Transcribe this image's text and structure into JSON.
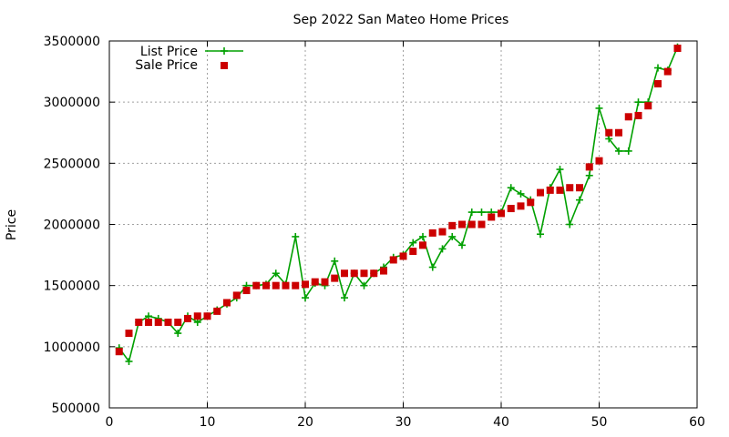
{
  "chart_data": {
    "type": "line",
    "title": "Sep 2022 San Mateo Home Prices",
    "xlabel": "",
    "ylabel": "Price",
    "xlim": [
      0,
      60
    ],
    "ylim": [
      500000,
      3500000
    ],
    "xticks": [
      0,
      10,
      20,
      30,
      40,
      50,
      60
    ],
    "yticks": [
      500000,
      1000000,
      1500000,
      2000000,
      2500000,
      3000000,
      3500000
    ],
    "grid": true,
    "legend_position": "top-left",
    "series": [
      {
        "name": "List Price",
        "style": "line+cross",
        "color": "#00a000",
        "x": [
          1,
          2,
          3,
          4,
          5,
          6,
          7,
          8,
          9,
          10,
          11,
          12,
          13,
          14,
          15,
          16,
          17,
          18,
          19,
          20,
          21,
          22,
          23,
          24,
          25,
          26,
          27,
          28,
          29,
          30,
          31,
          32,
          33,
          34,
          35,
          36,
          37,
          38,
          39,
          40,
          41,
          42,
          43,
          44,
          45,
          46,
          47,
          48,
          49,
          50,
          51,
          52,
          53,
          54,
          55,
          56,
          57,
          58
        ],
        "y": [
          990000,
          880000,
          1200000,
          1250000,
          1230000,
          1200000,
          1110000,
          1250000,
          1200000,
          1250000,
          1300000,
          1350000,
          1400000,
          1500000,
          1500000,
          1510000,
          1600000,
          1510000,
          1900000,
          1400000,
          1520000,
          1500000,
          1700000,
          1400000,
          1600000,
          1500000,
          1600000,
          1650000,
          1730000,
          1750000,
          1850000,
          1900000,
          1650000,
          1800000,
          1900000,
          1830000,
          2100000,
          2100000,
          2100000,
          2100000,
          2300000,
          2250000,
          2200000,
          1920000,
          2300000,
          2450000,
          2000000,
          2200000,
          2400000,
          2950000,
          2700000,
          2600000,
          2600000,
          3000000,
          3000000,
          3280000,
          3260000,
          3450000
        ]
      },
      {
        "name": "Sale Price",
        "style": "square",
        "color": "#cc0000",
        "x": [
          1,
          2,
          3,
          4,
          5,
          6,
          7,
          8,
          9,
          10,
          11,
          12,
          13,
          14,
          15,
          16,
          17,
          18,
          19,
          20,
          21,
          22,
          23,
          24,
          25,
          26,
          27,
          28,
          29,
          30,
          31,
          32,
          33,
          34,
          35,
          36,
          37,
          38,
          39,
          40,
          41,
          42,
          43,
          44,
          45,
          46,
          47,
          48,
          49,
          50,
          51,
          52,
          53,
          54,
          55,
          56,
          57,
          58
        ],
        "y": [
          960000,
          1110000,
          1200000,
          1200000,
          1200000,
          1200000,
          1200000,
          1230000,
          1250000,
          1250000,
          1290000,
          1360000,
          1420000,
          1460000,
          1500000,
          1500000,
          1500000,
          1500000,
          1500000,
          1510000,
          1530000,
          1530000,
          1560000,
          1600000,
          1600000,
          1600000,
          1600000,
          1620000,
          1710000,
          1740000,
          1780000,
          1830000,
          1930000,
          1940000,
          1990000,
          2000000,
          2000000,
          2000000,
          2060000,
          2090000,
          2130000,
          2150000,
          2180000,
          2260000,
          2280000,
          2280000,
          2300000,
          2300000,
          2470000,
          2520000,
          2750000,
          2750000,
          2880000,
          2890000,
          2970000,
          3150000,
          3250000,
          3440000
        ]
      }
    ]
  }
}
